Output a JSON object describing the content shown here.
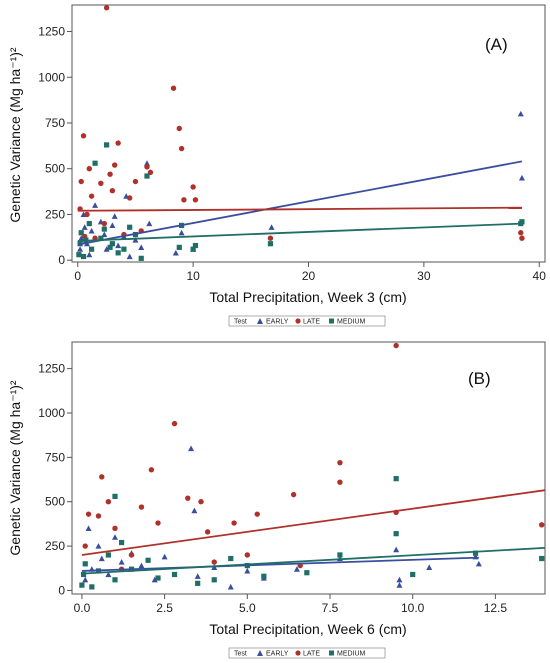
{
  "colors": {
    "EARLY": "#3a4ea0",
    "LATE": "#b0302a",
    "MEDIUM": "#1f6f66"
  },
  "legend": {
    "title": "Test",
    "entries": [
      "EARLY",
      "LATE",
      "MEDIUM"
    ]
  },
  "chart_data": [
    {
      "type": "scatter",
      "panel_label": "(A)",
      "xlabel": "Total Precipitation, Week 3 (cm)",
      "ylabel": "Genetic Variance (Mg ha⁻¹)²",
      "xlim": [
        -0.5,
        40.5
      ],
      "ylim": [
        -10,
        1395
      ],
      "xticks": [
        0,
        10,
        20,
        30,
        40
      ],
      "yticks": [
        0,
        250,
        500,
        750,
        1000,
        1250
      ],
      "series": [
        {
          "name": "EARLY",
          "marker": "triangle",
          "points": [
            [
              0.2,
              60
            ],
            [
              0.3,
              120
            ],
            [
              0.5,
              250
            ],
            [
              0.6,
              180
            ],
            [
              0.8,
              90
            ],
            [
              1.0,
              30
            ],
            [
              1.2,
              160
            ],
            [
              1.5,
              300
            ],
            [
              2.0,
              210
            ],
            [
              2.3,
              140
            ],
            [
              2.5,
              60
            ],
            [
              3.0,
              190
            ],
            [
              3.2,
              240
            ],
            [
              3.5,
              80
            ],
            [
              4.0,
              130
            ],
            [
              4.2,
              350
            ],
            [
              4.5,
              20
            ],
            [
              5.0,
              110
            ],
            [
              5.5,
              70
            ],
            [
              6.0,
              530
            ],
            [
              6.2,
              200
            ],
            [
              8.5,
              40
            ],
            [
              9.0,
              150
            ],
            [
              10.0,
              60
            ],
            [
              16.8,
              180
            ],
            [
              38.4,
              800
            ],
            [
              38.5,
              450
            ]
          ],
          "trend": [
            [
              0,
              85
            ],
            [
              38.5,
              540
            ]
          ]
        },
        {
          "name": "LATE",
          "marker": "circle",
          "points": [
            [
              0.2,
              280
            ],
            [
              0.3,
              430
            ],
            [
              0.5,
              680
            ],
            [
              0.6,
              130
            ],
            [
              0.8,
              250
            ],
            [
              1.0,
              500
            ],
            [
              1.2,
              350
            ],
            [
              1.5,
              120
            ],
            [
              2.0,
              420
            ],
            [
              2.3,
              200
            ],
            [
              2.5,
              1380
            ],
            [
              2.8,
              470
            ],
            [
              3.0,
              380
            ],
            [
              3.2,
              520
            ],
            [
              3.5,
              640
            ],
            [
              4.0,
              140
            ],
            [
              4.5,
              340
            ],
            [
              5.0,
              430
            ],
            [
              5.5,
              160
            ],
            [
              6.0,
              510
            ],
            [
              6.3,
              480
            ],
            [
              8.3,
              940
            ],
            [
              8.8,
              720
            ],
            [
              9.0,
              610
            ],
            [
              9.2,
              330
            ],
            [
              10.0,
              400
            ],
            [
              10.2,
              330
            ],
            [
              16.7,
              120
            ],
            [
              38.4,
              150
            ],
            [
              38.5,
              120
            ]
          ],
          "trend": [
            [
              0,
              270
            ],
            [
              38.5,
              287
            ]
          ]
        },
        {
          "name": "MEDIUM",
          "marker": "square",
          "points": [
            [
              0.1,
              30
            ],
            [
              0.2,
              90
            ],
            [
              0.3,
              150
            ],
            [
              0.5,
              20
            ],
            [
              0.7,
              110
            ],
            [
              1.0,
              200
            ],
            [
              1.2,
              60
            ],
            [
              1.5,
              530
            ],
            [
              2.0,
              120
            ],
            [
              2.3,
              170
            ],
            [
              2.5,
              630
            ],
            [
              2.8,
              70
            ],
            [
              3.0,
              90
            ],
            [
              3.5,
              40
            ],
            [
              4.0,
              60
            ],
            [
              4.5,
              180
            ],
            [
              5.0,
              140
            ],
            [
              5.5,
              10
            ],
            [
              6.0,
              460
            ],
            [
              8.8,
              70
            ],
            [
              9.0,
              190
            ],
            [
              10.0,
              60
            ],
            [
              10.2,
              80
            ],
            [
              16.7,
              90
            ],
            [
              38.5,
              210
            ],
            [
              38.4,
              200
            ]
          ],
          "trend": [
            [
              0,
              105
            ],
            [
              38.5,
              200
            ]
          ]
        }
      ]
    },
    {
      "type": "scatter",
      "panel_label": "(B)",
      "xlabel": "Total Precipitation, Week 6 (cm)",
      "ylabel": "Genetic Variance (Mg ha⁻¹)²",
      "xlim": [
        -0.3,
        14.0
      ],
      "ylim": [
        -20,
        1400
      ],
      "xticks": [
        0.0,
        2.5,
        5.0,
        7.5,
        10.0,
        12.5
      ],
      "yticks": [
        0,
        250,
        500,
        750,
        1000,
        1250
      ],
      "series": [
        {
          "name": "EARLY",
          "marker": "triangle",
          "points": [
            [
              0.1,
              60
            ],
            [
              0.2,
              350
            ],
            [
              0.3,
              120
            ],
            [
              0.5,
              250
            ],
            [
              0.6,
              180
            ],
            [
              0.8,
              90
            ],
            [
              1.0,
              300
            ],
            [
              1.2,
              160
            ],
            [
              1.5,
              210
            ],
            [
              1.8,
              140
            ],
            [
              2.2,
              60
            ],
            [
              2.5,
              190
            ],
            [
              3.3,
              800
            ],
            [
              3.4,
              450
            ],
            [
              3.5,
              80
            ],
            [
              4.0,
              130
            ],
            [
              4.5,
              20
            ],
            [
              5.0,
              110
            ],
            [
              5.5,
              70
            ],
            [
              6.5,
              120
            ],
            [
              7.8,
              180
            ],
            [
              9.5,
              230
            ],
            [
              9.6,
              60
            ],
            [
              9.6,
              30
            ],
            [
              10.5,
              130
            ],
            [
              11.9,
              190
            ],
            [
              12.0,
              150
            ]
          ],
          "trend": [
            [
              0,
              110
            ],
            [
              12.0,
              185
            ]
          ]
        },
        {
          "name": "LATE",
          "marker": "circle",
          "points": [
            [
              0.1,
              250
            ],
            [
              0.2,
              430
            ],
            [
              0.5,
              420
            ],
            [
              0.6,
              640
            ],
            [
              0.8,
              500
            ],
            [
              1.0,
              350
            ],
            [
              1.2,
              120
            ],
            [
              1.5,
              200
            ],
            [
              1.8,
              470
            ],
            [
              2.1,
              680
            ],
            [
              2.3,
              380
            ],
            [
              2.8,
              940
            ],
            [
              3.2,
              520
            ],
            [
              3.6,
              500
            ],
            [
              3.8,
              330
            ],
            [
              4.0,
              160
            ],
            [
              4.6,
              380
            ],
            [
              5.0,
              200
            ],
            [
              5.3,
              430
            ],
            [
              6.4,
              540
            ],
            [
              6.6,
              140
            ],
            [
              7.8,
              720
            ],
            [
              7.8,
              610
            ],
            [
              9.5,
              1380
            ],
            [
              9.5,
              440
            ],
            [
              13.9,
              370
            ]
          ],
          "trend": [
            [
              0,
              200
            ],
            [
              14.0,
              565
            ]
          ]
        },
        {
          "name": "MEDIUM",
          "marker": "square",
          "points": [
            [
              0.0,
              30
            ],
            [
              0.05,
              90
            ],
            [
              0.1,
              150
            ],
            [
              0.3,
              20
            ],
            [
              0.5,
              110
            ],
            [
              0.8,
              200
            ],
            [
              1.0,
              530
            ],
            [
              1.0,
              60
            ],
            [
              1.2,
              270
            ],
            [
              1.5,
              120
            ],
            [
              2.0,
              170
            ],
            [
              2.3,
              70
            ],
            [
              2.8,
              90
            ],
            [
              3.5,
              40
            ],
            [
              4.0,
              60
            ],
            [
              4.5,
              180
            ],
            [
              5.0,
              140
            ],
            [
              5.5,
              80
            ],
            [
              6.8,
              100
            ],
            [
              7.8,
              200
            ],
            [
              9.5,
              630
            ],
            [
              9.5,
              320
            ],
            [
              10.0,
              90
            ],
            [
              11.9,
              210
            ],
            [
              13.9,
              180
            ]
          ],
          "trend": [
            [
              0,
              95
            ],
            [
              14.0,
              240
            ]
          ]
        }
      ]
    }
  ]
}
